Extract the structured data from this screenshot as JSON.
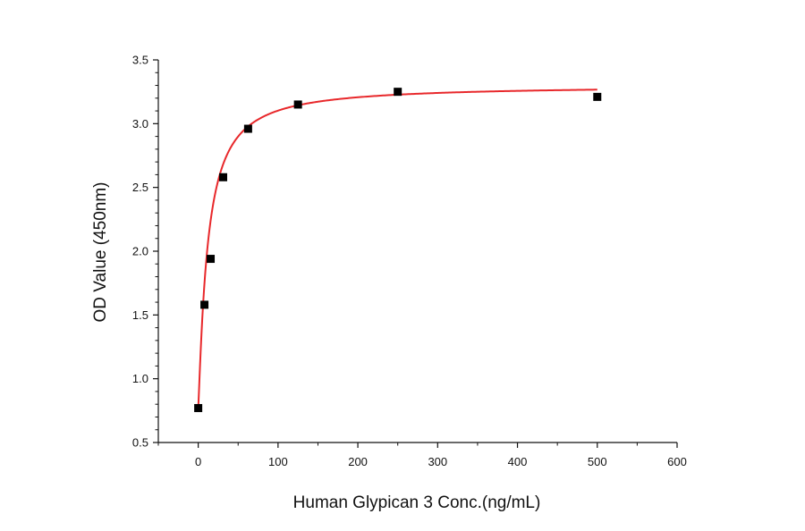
{
  "chart_data": {
    "type": "scatter",
    "title": "",
    "xlabel": "Human Glypican 3 Conc.(ng/mL)",
    "ylabel": "OD Value (450nm)",
    "xlim": [
      -50,
      600
    ],
    "ylim": [
      0.5,
      3.5
    ],
    "x_ticks": [
      0,
      100,
      200,
      300,
      400,
      500,
      600
    ],
    "y_ticks": [
      0.5,
      1.0,
      1.5,
      2.0,
      2.5,
      3.0,
      3.5
    ],
    "x_tick_labels": [
      "0",
      "100",
      "200",
      "300",
      "400",
      "500",
      "600"
    ],
    "y_tick_labels": [
      "0.5",
      "1.0",
      "1.5",
      "2.0",
      "2.5",
      "3.0",
      "3.5"
    ],
    "grid": false,
    "legend": "none",
    "series": [
      {
        "marker": "square",
        "color": "#000000",
        "x": [
          0,
          7.8,
          15.6,
          31.25,
          62.5,
          125,
          250,
          500
        ],
        "y": [
          0.77,
          1.58,
          1.94,
          2.58,
          2.96,
          3.15,
          3.25,
          3.21
        ]
      }
    ],
    "fit_curve": {
      "color": "#e8282b",
      "model": "four-parameter logistic",
      "x_range": [
        0,
        500
      ],
      "params": {
        "bottom": 0.77,
        "top": 3.3,
        "ec50": 11.7,
        "hill": 1.15
      }
    }
  }
}
